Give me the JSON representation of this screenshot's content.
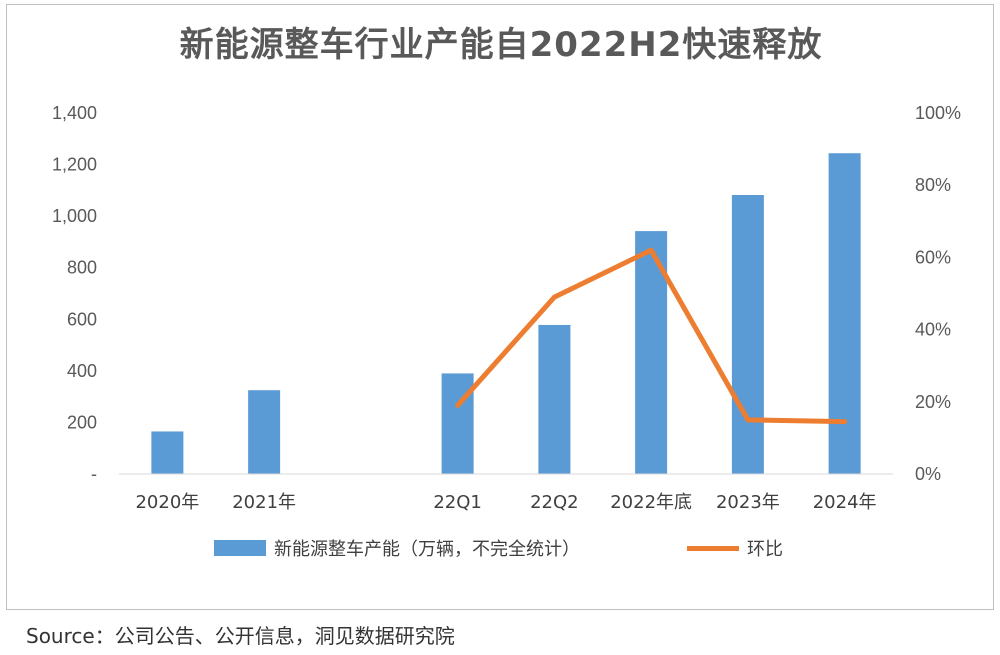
{
  "chart_data": {
    "type": "bar",
    "title": "新能源整车行业产能自2022H2快速释放",
    "categories": [
      "2020年",
      "2021年",
      "",
      "22Q1",
      "22Q2",
      "2022年底",
      "2023年",
      "2024年"
    ],
    "series": [
      {
        "name": "新能源整车产能（万辆，不完全统计）",
        "type": "bar",
        "axis": "left",
        "color": "#5b9bd5",
        "values": [
          165,
          325,
          null,
          390,
          578,
          942,
          1082,
          1244
        ]
      },
      {
        "name": "环比",
        "type": "line",
        "axis": "right",
        "color": "#ed7d31",
        "values": [
          null,
          null,
          null,
          0.19,
          0.49,
          0.62,
          0.15,
          0.145
        ]
      }
    ],
    "y_left": {
      "lim": [
        0,
        1400
      ],
      "ticks": [
        0,
        200,
        400,
        600,
        800,
        1000,
        1200,
        1400
      ],
      "tick_labels": [
        "-",
        "200",
        "400",
        "600",
        "800",
        "1,000",
        "1,200",
        "1,400"
      ]
    },
    "y_right": {
      "lim": [
        0,
        1.0
      ],
      "ticks": [
        0,
        0.2,
        0.4,
        0.6,
        0.8,
        1.0
      ],
      "tick_labels": [
        "0%",
        "20%",
        "40%",
        "60%",
        "80%",
        "100%"
      ]
    },
    "grid": false,
    "legend_position": "bottom"
  },
  "source": "Source：公司公告、公开信息，洞见数据研究院"
}
